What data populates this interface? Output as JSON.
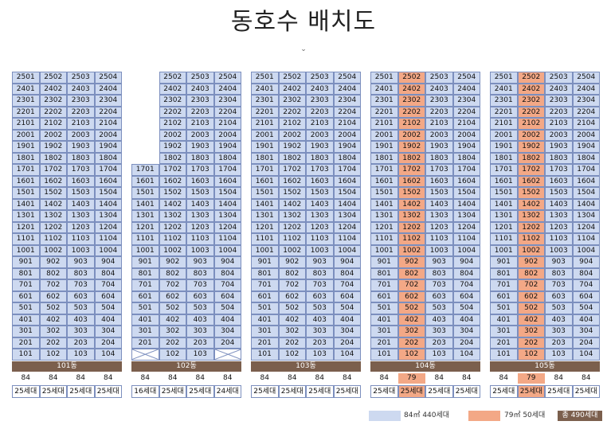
{
  "title": "동호수 배치도",
  "chevron": "⌄",
  "colors": {
    "unit84": "#cdd9f0",
    "unit79": "#f3a886",
    "bar": "#7b5f4d",
    "border": "#7c8fbe"
  },
  "buildings": [
    {
      "name": "101동",
      "top_floor": 25,
      "bottom_floor": 1,
      "columns": [
        {
          "line": 1,
          "from": 1,
          "type": "84",
          "count": "25세대"
        },
        {
          "line": 2,
          "from": 1,
          "type": "84",
          "count": "25세대"
        },
        {
          "line": 3,
          "from": 1,
          "type": "84",
          "count": "25세대"
        },
        {
          "line": 4,
          "from": 1,
          "type": "84",
          "count": "25세대"
        }
      ]
    },
    {
      "name": "102동",
      "top_floor": 25,
      "bottom_floor": 1,
      "columns": [
        {
          "line": 1,
          "from": 2,
          "to": 17,
          "type": "84",
          "count": "16세대"
        },
        {
          "line": 2,
          "from": 1,
          "type": "84",
          "count": "25세대"
        },
        {
          "line": 3,
          "from": 1,
          "type": "84",
          "count": "25세대"
        },
        {
          "line": 4,
          "from": 2,
          "type": "84",
          "count": "24세대"
        }
      ]
    },
    {
      "name": "103동",
      "top_floor": 25,
      "bottom_floor": 1,
      "columns": [
        {
          "line": 1,
          "from": 1,
          "type": "84",
          "count": "25세대"
        },
        {
          "line": 2,
          "from": 1,
          "type": "84",
          "count": "25세대"
        },
        {
          "line": 3,
          "from": 1,
          "type": "84",
          "count": "25세대"
        },
        {
          "line": 4,
          "from": 1,
          "type": "84",
          "count": "25세대"
        }
      ]
    },
    {
      "name": "104동",
      "top_floor": 25,
      "bottom_floor": 1,
      "columns": [
        {
          "line": 1,
          "from": 1,
          "type": "84",
          "count": "25세대"
        },
        {
          "line": 2,
          "from": 1,
          "type": "79",
          "count": "25세대"
        },
        {
          "line": 3,
          "from": 1,
          "type": "84",
          "count": "25세대"
        },
        {
          "line": 4,
          "from": 1,
          "type": "84",
          "count": "25세대"
        }
      ]
    },
    {
      "name": "105동",
      "top_floor": 25,
      "bottom_floor": 1,
      "columns": [
        {
          "line": 1,
          "from": 1,
          "type": "84",
          "count": "25세대"
        },
        {
          "line": 2,
          "from": 1,
          "type": "79",
          "count": "25세대"
        },
        {
          "line": 3,
          "from": 1,
          "type": "84",
          "count": "25세대"
        },
        {
          "line": 4,
          "from": 1,
          "type": "84",
          "count": "25세대"
        }
      ]
    }
  ],
  "legend": {
    "type84": "84㎡ 440세대",
    "type79": "79㎡ 50세대",
    "total": "총 490세대"
  }
}
